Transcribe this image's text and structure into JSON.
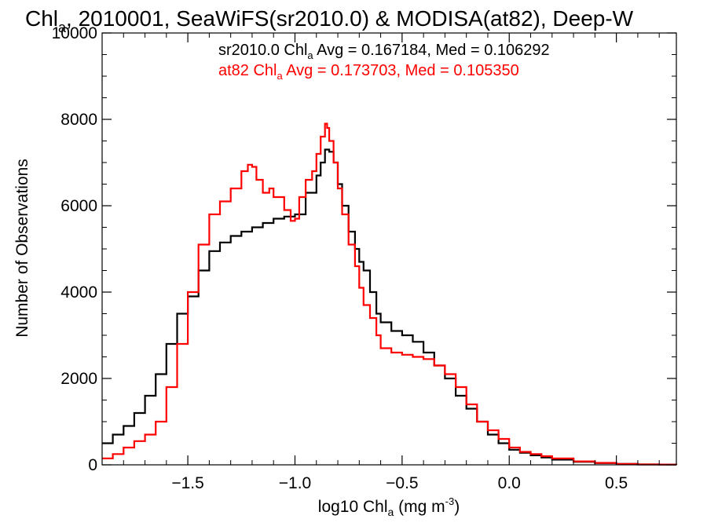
{
  "chart_data": {
    "type": "line",
    "title": {
      "pre": "Chl",
      "sub": "a",
      "post": ", 2010001, SeaWiFS(sr2010.0) & MODISA(at82), Deep-W"
    },
    "xlabel": {
      "pre": "log10 Chl",
      "sub": "a",
      "mid": " (mg m",
      "sup": "-3",
      "post": ")"
    },
    "ylabel": "Number of Observations",
    "xlim": [
      -1.9,
      0.78
    ],
    "ylim": [
      0,
      10000
    ],
    "x_ticks": [
      -1.5,
      -1.0,
      -0.5,
      0.0,
      0.5
    ],
    "x_tick_labels": [
      "−1.5",
      "−1.0",
      "−0.5",
      "0.0",
      "0.5"
    ],
    "y_ticks": [
      0,
      2000,
      4000,
      6000,
      8000,
      10000
    ],
    "y_tick_labels": [
      "0",
      "2000",
      "4000",
      "6000",
      "8000",
      "10000"
    ],
    "grid": false,
    "legend_placement": "top-right",
    "annotations": [
      {
        "pre": "sr2010.0 Chl",
        "sub": "a",
        "post": " Avg = 0.167184, Med = 0.106292",
        "color": "#000000"
      },
      {
        "pre": "at82 Chl",
        "sub": "a",
        "post": " Avg = 0.173703, Med = 0.105350",
        "color": "#ff0000"
      }
    ],
    "series": [
      {
        "color": "#000000",
        "x": [
          -1.9,
          -1.85,
          -1.8,
          -1.75,
          -1.7,
          -1.65,
          -1.6,
          -1.55,
          -1.5,
          -1.45,
          -1.4,
          -1.35,
          -1.3,
          -1.25,
          -1.2,
          -1.15,
          -1.1,
          -1.05,
          -1.0,
          -0.95,
          -0.9,
          -0.88,
          -0.86,
          -0.84,
          -0.82,
          -0.8,
          -0.78,
          -0.75,
          -0.72,
          -0.7,
          -0.68,
          -0.65,
          -0.62,
          -0.6,
          -0.55,
          -0.5,
          -0.45,
          -0.4,
          -0.35,
          -0.3,
          -0.25,
          -0.2,
          -0.15,
          -0.1,
          -0.05,
          0.0,
          0.05,
          0.1,
          0.15,
          0.2,
          0.3,
          0.4,
          0.5,
          0.6,
          0.7,
          0.78
        ],
        "y": [
          500,
          700,
          900,
          1200,
          1600,
          2100,
          2800,
          3500,
          3900,
          4500,
          4950,
          5150,
          5300,
          5400,
          5500,
          5600,
          5700,
          5750,
          5800,
          6300,
          6700,
          7000,
          7300,
          7250,
          7000,
          6500,
          6000,
          5400,
          5000,
          4700,
          4500,
          4000,
          3500,
          3300,
          3100,
          3000,
          2850,
          2600,
          2300,
          2000,
          1600,
          1300,
          1000,
          700,
          500,
          350,
          280,
          220,
          170,
          120,
          70,
          40,
          20,
          10,
          5,
          3
        ]
      },
      {
        "color": "#ff0000",
        "x": [
          -1.9,
          -1.85,
          -1.8,
          -1.75,
          -1.7,
          -1.65,
          -1.6,
          -1.55,
          -1.5,
          -1.45,
          -1.4,
          -1.35,
          -1.3,
          -1.25,
          -1.22,
          -1.2,
          -1.18,
          -1.15,
          -1.12,
          -1.1,
          -1.05,
          -1.02,
          -1.0,
          -0.98,
          -0.95,
          -0.92,
          -0.9,
          -0.88,
          -0.86,
          -0.85,
          -0.84,
          -0.82,
          -0.8,
          -0.78,
          -0.75,
          -0.72,
          -0.7,
          -0.68,
          -0.65,
          -0.62,
          -0.6,
          -0.55,
          -0.5,
          -0.45,
          -0.4,
          -0.35,
          -0.3,
          -0.25,
          -0.2,
          -0.15,
          -0.1,
          -0.05,
          0.0,
          0.05,
          0.1,
          0.15,
          0.2,
          0.3,
          0.4,
          0.5,
          0.6,
          0.7,
          0.78
        ],
        "y": [
          150,
          250,
          400,
          550,
          700,
          1000,
          1800,
          2800,
          4000,
          5100,
          5800,
          6100,
          6400,
          6800,
          6950,
          6900,
          6600,
          6300,
          6400,
          6200,
          5900,
          5650,
          5700,
          6200,
          6600,
          6800,
          7200,
          7600,
          7900,
          7800,
          7500,
          7000,
          6400,
          5800,
          5100,
          4600,
          4100,
          3700,
          3400,
          3000,
          2700,
          2600,
          2550,
          2500,
          2450,
          2300,
          2100,
          1800,
          1400,
          1000,
          800,
          600,
          400,
          300,
          250,
          200,
          150,
          80,
          45,
          20,
          10,
          5,
          3
        ]
      }
    ]
  }
}
